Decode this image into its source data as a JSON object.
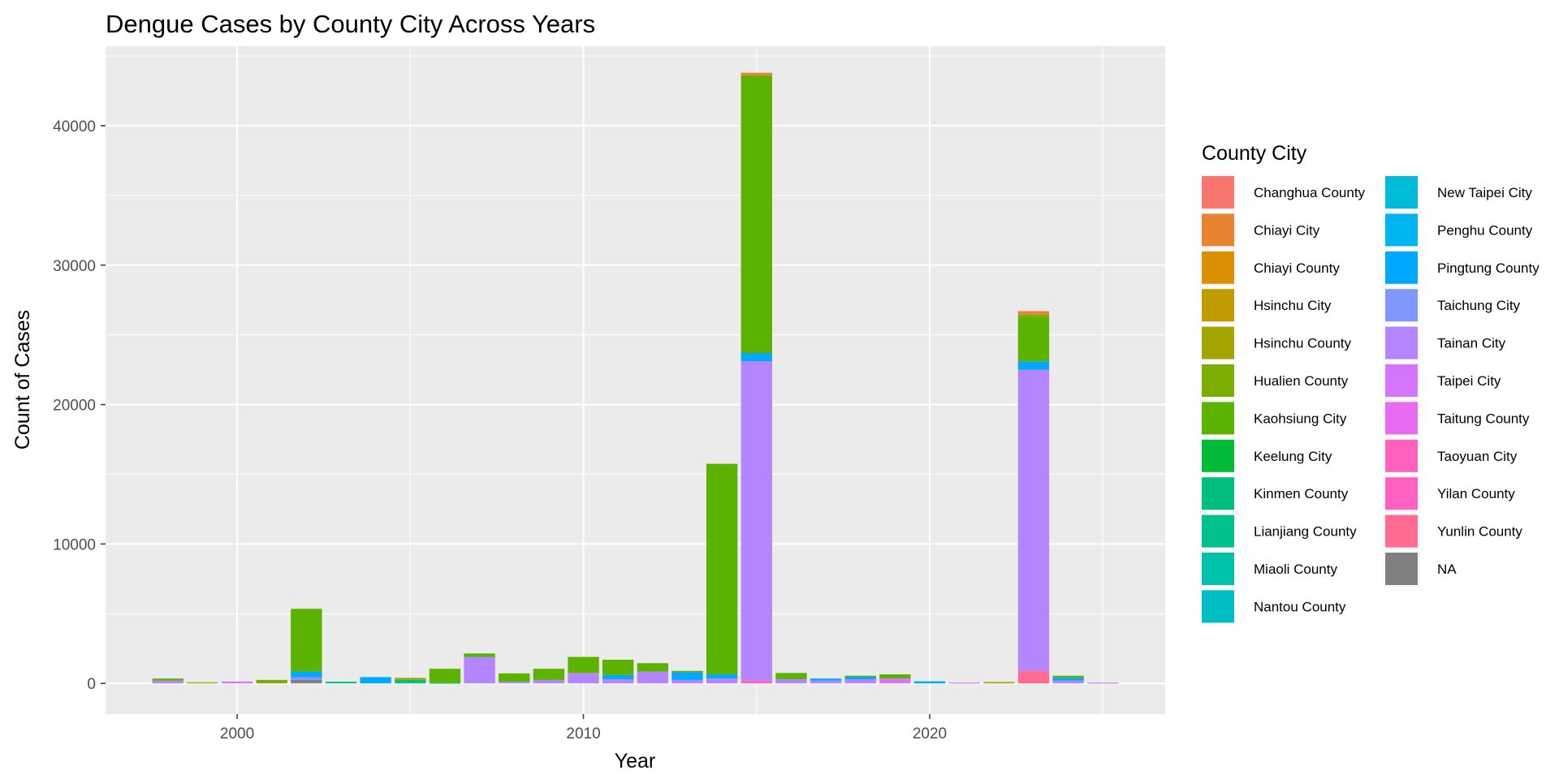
{
  "chart_data": {
    "type": "bar",
    "stacked": true,
    "title": "Dengue Cases by County City Across Years",
    "xlabel": "Year",
    "ylabel": "Count of Cases",
    "xlim": [
      1996.2,
      2026.8
    ],
    "ylim": [
      -2200,
      45700
    ],
    "x_ticks": [
      2000,
      2010,
      2020
    ],
    "y_ticks": [
      0,
      10000,
      20000,
      30000,
      40000
    ],
    "grid": true,
    "legend": {
      "title": "County City",
      "position": "right",
      "columns": 2,
      "entries": [
        {
          "name": "Changhua County",
          "color": "#F8766D"
        },
        {
          "name": "Chiayi City",
          "color": "#EA8331"
        },
        {
          "name": "Chiayi County",
          "color": "#D89000"
        },
        {
          "name": "Hsinchu City",
          "color": "#C09B00"
        },
        {
          "name": "Hsinchu County",
          "color": "#A3A500"
        },
        {
          "name": "Hualien County",
          "color": "#7CAE00"
        },
        {
          "name": "Kaohsiung City",
          "color": "#5BB300"
        },
        {
          "name": "Keelung City",
          "color": "#00BA38"
        },
        {
          "name": "Kinmen County",
          "color": "#00BF7D"
        },
        {
          "name": "Lianjiang County",
          "color": "#00C08B"
        },
        {
          "name": "Miaoli County",
          "color": "#00C1A9"
        },
        {
          "name": "Nantou County",
          "color": "#00BFC4"
        },
        {
          "name": "New Taipei City",
          "color": "#00BCD8"
        },
        {
          "name": "Penghu County",
          "color": "#00B4F0"
        },
        {
          "name": "Pingtung County",
          "color": "#00A9FF"
        },
        {
          "name": "Taichung City",
          "color": "#7F96FF"
        },
        {
          "name": "Tainan City",
          "color": "#B385FF"
        },
        {
          "name": "Taipei City",
          "color": "#D575FE"
        },
        {
          "name": "Taitung County",
          "color": "#E76BF3"
        },
        {
          "name": "Taoyuan City",
          "color": "#FF62BC"
        },
        {
          "name": "Yilan County",
          "color": "#FF61C3"
        },
        {
          "name": "Yunlin County",
          "color": "#FF6C91"
        },
        {
          "name": "NA",
          "color": "#808080"
        }
      ]
    },
    "bars": [
      {
        "year": 1998,
        "segments": [
          {
            "series": "Tainan City",
            "value": 200
          },
          {
            "series": "Kaohsiung City",
            "value": 150
          }
        ]
      },
      {
        "year": 1999,
        "segments": [
          {
            "series": "Hsinchu County",
            "value": 80
          }
        ]
      },
      {
        "year": 2000,
        "segments": [
          {
            "series": "Taipei City",
            "value": 130
          }
        ]
      },
      {
        "year": 2001,
        "segments": [
          {
            "series": "Hualien County",
            "value": 250
          }
        ]
      },
      {
        "year": 2002,
        "segments": [
          {
            "series": "NA",
            "value": 250
          },
          {
            "series": "Taichung City",
            "value": 200
          },
          {
            "series": "Pingtung County",
            "value": 400
          },
          {
            "series": "Kaohsiung City",
            "value": 4500
          }
        ]
      },
      {
        "year": 2003,
        "segments": [
          {
            "series": "Kinmen County",
            "value": 120
          }
        ]
      },
      {
        "year": 2004,
        "segments": [
          {
            "series": "Pingtung County",
            "value": 450
          }
        ]
      },
      {
        "year": 2005,
        "segments": [
          {
            "series": "Kinmen County",
            "value": 250
          },
          {
            "series": "Hsinchu County",
            "value": 150
          }
        ]
      },
      {
        "year": 2006,
        "segments": [
          {
            "series": "Kinmen County",
            "value": 50
          },
          {
            "series": "Kaohsiung City",
            "value": 1000
          }
        ]
      },
      {
        "year": 2007,
        "segments": [
          {
            "series": "Tainan City",
            "value": 1900
          },
          {
            "series": "Kaohsiung City",
            "value": 250
          }
        ]
      },
      {
        "year": 2008,
        "segments": [
          {
            "series": "Tainan City",
            "value": 120
          },
          {
            "series": "Kaohsiung City",
            "value": 600
          }
        ]
      },
      {
        "year": 2009,
        "segments": [
          {
            "series": "Tainan City",
            "value": 250
          },
          {
            "series": "Kaohsiung City",
            "value": 800
          }
        ]
      },
      {
        "year": 2010,
        "segments": [
          {
            "series": "Tainan City",
            "value": 750
          },
          {
            "series": "Kaohsiung City",
            "value": 1150
          }
        ]
      },
      {
        "year": 2011,
        "segments": [
          {
            "series": "Tainan City",
            "value": 300
          },
          {
            "series": "Pingtung County",
            "value": 300
          },
          {
            "series": "Kaohsiung City",
            "value": 1100
          }
        ]
      },
      {
        "year": 2012,
        "segments": [
          {
            "series": "Tainan City",
            "value": 850
          },
          {
            "series": "Kaohsiung City",
            "value": 600
          }
        ]
      },
      {
        "year": 2013,
        "segments": [
          {
            "series": "Tainan City",
            "value": 250
          },
          {
            "series": "Pingtung County",
            "value": 550
          },
          {
            "series": "Kaohsiung City",
            "value": 100
          }
        ]
      },
      {
        "year": 2014,
        "segments": [
          {
            "series": "Tainan City",
            "value": 350
          },
          {
            "series": "Pingtung County",
            "value": 300
          },
          {
            "series": "Kaohsiung City",
            "value": 15100
          }
        ]
      },
      {
        "year": 2015,
        "segments": [
          {
            "series": "Taoyuan City",
            "value": 200
          },
          {
            "series": "Tainan City",
            "value": 22900
          },
          {
            "series": "Pingtung County",
            "value": 600
          },
          {
            "series": "Kaohsiung City",
            "value": 19900
          },
          {
            "series": "Chiayi City",
            "value": 200
          }
        ]
      },
      {
        "year": 2016,
        "segments": [
          {
            "series": "Tainan City",
            "value": 300
          },
          {
            "series": "Kaohsiung City",
            "value": 450
          }
        ]
      },
      {
        "year": 2017,
        "segments": [
          {
            "series": "Tainan City",
            "value": 200
          },
          {
            "series": "Pingtung County",
            "value": 150
          }
        ]
      },
      {
        "year": 2018,
        "segments": [
          {
            "series": "Tainan City",
            "value": 300
          },
          {
            "series": "Pingtung County",
            "value": 200
          },
          {
            "series": "Kaohsiung City",
            "value": 50
          }
        ]
      },
      {
        "year": 2019,
        "segments": [
          {
            "series": "Taipei City",
            "value": 350
          },
          {
            "series": "Kaohsiung City",
            "value": 300
          }
        ]
      },
      {
        "year": 2020,
        "segments": [
          {
            "series": "Pingtung County",
            "value": 150
          }
        ]
      },
      {
        "year": 2021,
        "segments": [
          {
            "series": "Taipei City",
            "value": 60
          }
        ]
      },
      {
        "year": 2022,
        "segments": [
          {
            "series": "Hsinchu County",
            "value": 100
          }
        ]
      },
      {
        "year": 2023,
        "segments": [
          {
            "series": "Yunlin County",
            "value": 900
          },
          {
            "series": "Tainan City",
            "value": 21600
          },
          {
            "series": "Pingtung County",
            "value": 600
          },
          {
            "series": "Kaohsiung City",
            "value": 3200
          },
          {
            "series": "Hualien County",
            "value": 150
          },
          {
            "series": "Chiayi City",
            "value": 250
          }
        ]
      },
      {
        "year": 2024,
        "segments": [
          {
            "series": "Tainan City",
            "value": 200
          },
          {
            "series": "Pingtung County",
            "value": 200
          },
          {
            "series": "Kaohsiung City",
            "value": 150
          }
        ]
      },
      {
        "year": 2025,
        "segments": [
          {
            "series": "Taipei City",
            "value": 60
          }
        ]
      }
    ]
  }
}
